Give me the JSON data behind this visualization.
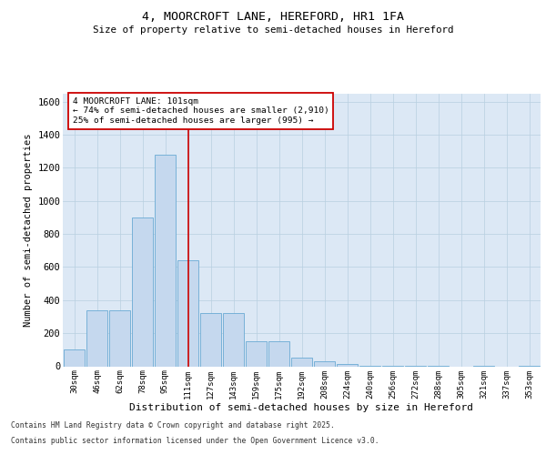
{
  "title_line1": "4, MOORCROFT LANE, HEREFORD, HR1 1FA",
  "title_line2": "Size of property relative to semi-detached houses in Hereford",
  "xlabel": "Distribution of semi-detached houses by size in Hereford",
  "ylabel": "Number of semi-detached properties",
  "annotation_title": "4 MOORCROFT LANE: 101sqm",
  "annotation_line2": "← 74% of semi-detached houses are smaller (2,910)",
  "annotation_line3": "25% of semi-detached houses are larger (995) →",
  "footer_line1": "Contains HM Land Registry data © Crown copyright and database right 2025.",
  "footer_line2": "Contains public sector information licensed under the Open Government Licence v3.0.",
  "bar_color": "#c5d8ee",
  "bar_edge_color": "#6aaad4",
  "vline_color": "#cc0000",
  "annotation_box_color": "#cc0000",
  "background_color": "#ffffff",
  "plot_bg_color": "#dce8f5",
  "grid_color": "#b8cfe0",
  "categories": [
    "30sqm",
    "46sqm",
    "62sqm",
    "78sqm",
    "95sqm",
    "111sqm",
    "127sqm",
    "143sqm",
    "159sqm",
    "175sqm",
    "192sqm",
    "208sqm",
    "224sqm",
    "240sqm",
    "256sqm",
    "272sqm",
    "288sqm",
    "305sqm",
    "321sqm",
    "337sqm",
    "353sqm"
  ],
  "values": [
    100,
    340,
    340,
    900,
    1280,
    640,
    320,
    320,
    150,
    150,
    55,
    30,
    15,
    5,
    5,
    5,
    5,
    0,
    5,
    0,
    5
  ],
  "vline_x_index": 5.0,
  "ylim": [
    0,
    1650
  ],
  "yticks": [
    0,
    200,
    400,
    600,
    800,
    1000,
    1200,
    1400,
    1600
  ]
}
